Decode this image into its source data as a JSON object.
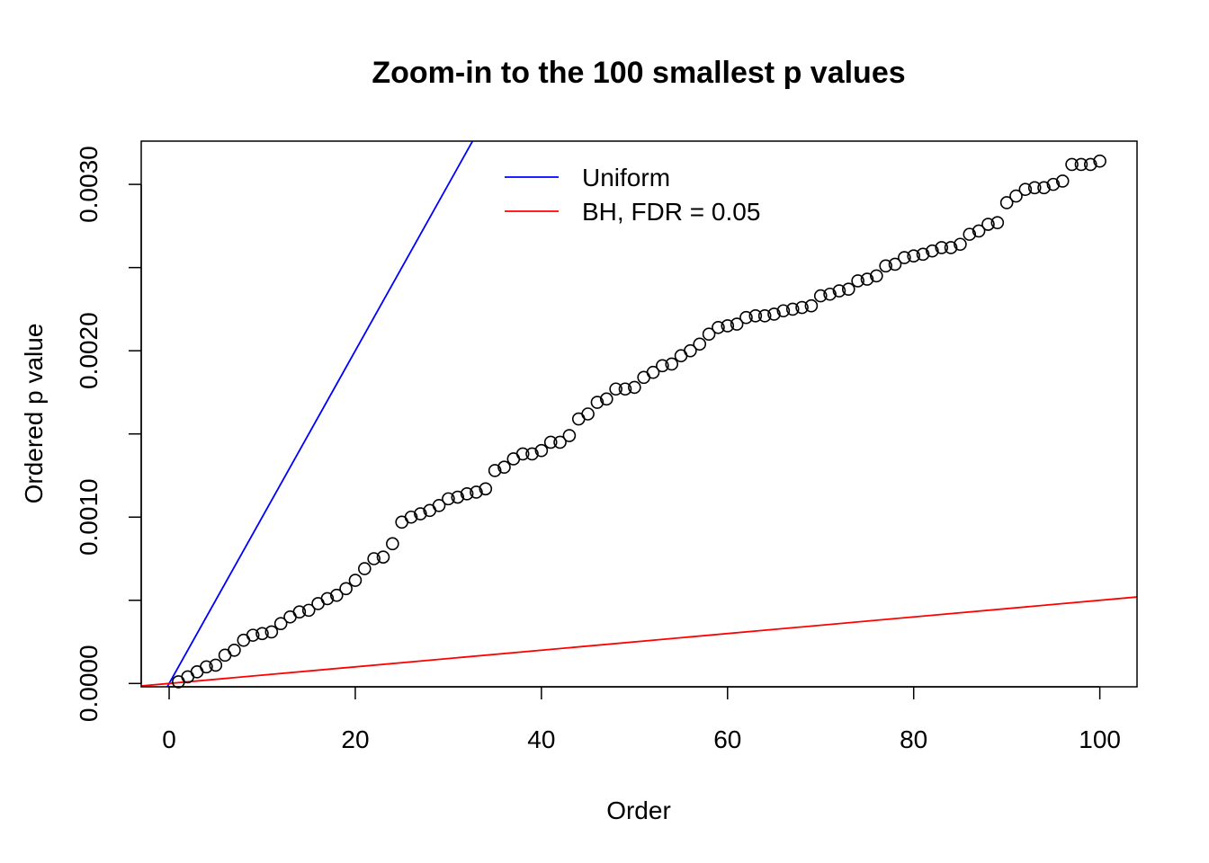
{
  "chart_data": {
    "type": "scatter",
    "title": "Zoom-in to the 100 smallest p values",
    "xlabel": "Order",
    "ylabel": "Ordered p value",
    "xlim": [
      -3,
      104
    ],
    "ylim": [
      -2e-05,
      0.00326
    ],
    "x_ticks": [
      0,
      20,
      40,
      60,
      80,
      100
    ],
    "x_tick_labels": [
      "0",
      "20",
      "40",
      "60",
      "80",
      "100"
    ],
    "y_ticks": [
      0.0,
      0.0005,
      0.001,
      0.0015,
      0.002,
      0.0025,
      0.003
    ],
    "y_tick_labels": [
      "0.0000",
      "",
      "0.0010",
      "",
      "0.0020",
      "",
      "0.0030"
    ],
    "grid": false,
    "legend_position": "top-center",
    "lines": [
      {
        "name": "Uniform",
        "color": "#0000ff",
        "slope": 0.0001,
        "intercept": 0
      },
      {
        "name": "BH, FDR = 0.05",
        "color": "#ff0000",
        "slope": 5e-06,
        "intercept": 0
      }
    ],
    "points": {
      "x": [
        1,
        2,
        3,
        4,
        5,
        6,
        7,
        8,
        9,
        10,
        11,
        12,
        13,
        14,
        15,
        16,
        17,
        18,
        19,
        20,
        21,
        22,
        23,
        24,
        25,
        26,
        27,
        28,
        29,
        30,
        31,
        32,
        33,
        34,
        35,
        36,
        37,
        38,
        39,
        40,
        41,
        42,
        43,
        44,
        45,
        46,
        47,
        48,
        49,
        50,
        51,
        52,
        53,
        54,
        55,
        56,
        57,
        58,
        59,
        60,
        61,
        62,
        63,
        64,
        65,
        66,
        67,
        68,
        69,
        70,
        71,
        72,
        73,
        74,
        75,
        76,
        77,
        78,
        79,
        80,
        81,
        82,
        83,
        84,
        85,
        86,
        87,
        88,
        89,
        90,
        91,
        92,
        93,
        94,
        95,
        96,
        97,
        98,
        99,
        100
      ],
      "y": [
        1e-05,
        4e-05,
        7e-05,
        0.0001,
        0.00011,
        0.00017,
        0.0002,
        0.00026,
        0.00029,
        0.0003,
        0.00031,
        0.00036,
        0.0004,
        0.00043,
        0.00044,
        0.00048,
        0.00051,
        0.00053,
        0.00057,
        0.00062,
        0.00069,
        0.00075,
        0.00076,
        0.00084,
        0.00097,
        0.001,
        0.00102,
        0.00104,
        0.00107,
        0.00111,
        0.00112,
        0.00114,
        0.00115,
        0.00117,
        0.00128,
        0.0013,
        0.00135,
        0.00138,
        0.00138,
        0.0014,
        0.00145,
        0.00145,
        0.00149,
        0.00159,
        0.00162,
        0.00169,
        0.00171,
        0.00177,
        0.00177,
        0.00178,
        0.00184,
        0.00187,
        0.00191,
        0.00192,
        0.00197,
        0.002,
        0.00204,
        0.0021,
        0.00214,
        0.00215,
        0.00216,
        0.0022,
        0.00221,
        0.00221,
        0.00222,
        0.00224,
        0.00225,
        0.00226,
        0.00227,
        0.00233,
        0.00234,
        0.00236,
        0.00237,
        0.00242,
        0.00243,
        0.00245,
        0.00251,
        0.00252,
        0.00256,
        0.00257,
        0.00258,
        0.0026,
        0.00262,
        0.00262,
        0.00264,
        0.0027,
        0.00272,
        0.00276,
        0.00277,
        0.00289,
        0.00293,
        0.00297,
        0.00298,
        0.00298,
        0.003,
        0.00302,
        0.00312,
        0.00312,
        0.00312,
        0.00314
      ]
    }
  }
}
